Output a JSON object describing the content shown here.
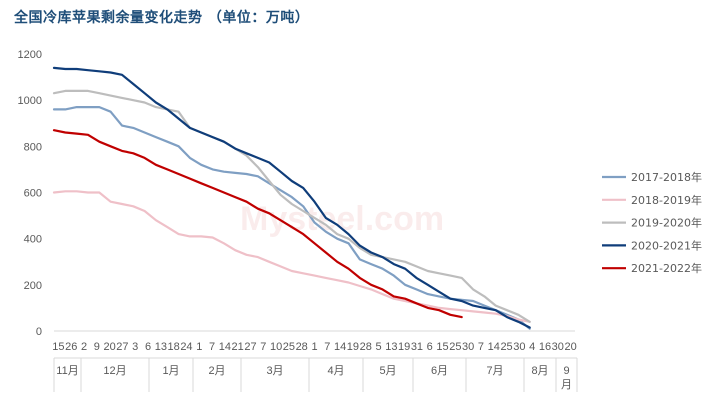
{
  "title": "全国冷库苹果剩余量变化走势  （单位：万吨）",
  "chart_data": {
    "type": "line",
    "title": "全国冷库苹果剩余量变化走势  （单位：万吨）",
    "ylim": [
      0,
      1200
    ],
    "yticks": [
      0,
      200,
      400,
      600,
      800,
      1000,
      1200
    ],
    "x_count": 47,
    "day_tick_labels": [
      "15",
      "26",
      "2",
      "9",
      "20",
      "27",
      "3",
      "6",
      "13",
      "18",
      "24",
      "1",
      "7",
      "14",
      "21",
      "27",
      "7",
      "10",
      "25",
      "28",
      "1",
      "7",
      "14",
      "19",
      "28",
      "5",
      "13",
      "19",
      "31",
      "6",
      "15",
      "25",
      "30",
      "7",
      "14",
      "25",
      "30",
      "4",
      "16",
      "30",
      "20"
    ],
    "month_labels": [
      {
        "label": "11月",
        "at": 1.0
      },
      {
        "label": "12月",
        "at": 5.0
      },
      {
        "label": "1月",
        "at": 10.0
      },
      {
        "label": "2月",
        "at": 15.5
      },
      {
        "label": "3月",
        "at": 20.5
      },
      {
        "label": "4月",
        "at": 25.5
      },
      {
        "label": "5月",
        "at": 30.5
      },
      {
        "label": "6月",
        "at": 35.5
      },
      {
        "label": "7月",
        "at": 40.5
      },
      {
        "label": "8月",
        "at": 44.0
      },
      {
        "label": "9\n月",
        "at": 46.0
      }
    ],
    "series": [
      {
        "name": "2017-2018年",
        "color": "#7f9fc3",
        "values": [
          960,
          960,
          970,
          970,
          970,
          950,
          890,
          880,
          860,
          840,
          820,
          800,
          750,
          720,
          700,
          690,
          685,
          680,
          670,
          640,
          610,
          580,
          540,
          470,
          430,
          400,
          380,
          310,
          290,
          270,
          240,
          200,
          180,
          160,
          150,
          140,
          135,
          130,
          110,
          90,
          70,
          50,
          10
        ]
      },
      {
        "name": "2018-2019年",
        "color": "#efc0c8",
        "values": [
          600,
          605,
          605,
          600,
          600,
          560,
          550,
          540,
          520,
          480,
          450,
          420,
          410,
          410,
          405,
          380,
          350,
          330,
          320,
          300,
          280,
          260,
          250,
          240,
          230,
          220,
          210,
          195,
          180,
          160,
          140,
          130,
          120,
          110,
          100,
          95,
          90,
          85,
          80,
          75,
          65,
          50,
          40
        ]
      },
      {
        "name": "2019-2020年",
        "color": "#bdbdbd",
        "values": [
          1030,
          1040,
          1040,
          1040,
          1030,
          1020,
          1010,
          1000,
          990,
          970,
          960,
          950,
          880,
          860,
          840,
          820,
          790,
          760,
          710,
          650,
          590,
          550,
          520,
          490,
          460,
          420,
          400,
          360,
          330,
          320,
          310,
          300,
          280,
          260,
          250,
          240,
          230,
          180,
          150,
          110,
          90,
          70,
          40
        ]
      },
      {
        "name": "2020-2021年",
        "color": "#0f3d7a",
        "values": [
          1140,
          1135,
          1135,
          1130,
          1125,
          1120,
          1110,
          1070,
          1030,
          990,
          960,
          920,
          880,
          860,
          840,
          820,
          790,
          770,
          750,
          730,
          690,
          650,
          620,
          560,
          490,
          460,
          420,
          370,
          340,
          320,
          290,
          270,
          230,
          200,
          170,
          140,
          130,
          110,
          100,
          90,
          60,
          40,
          15
        ]
      },
      {
        "name": "2021-2022年",
        "color": "#c00000",
        "values": [
          870,
          860,
          855,
          850,
          820,
          800,
          780,
          770,
          750,
          720,
          700,
          680,
          660,
          640,
          620,
          600,
          580,
          560,
          530,
          510,
          480,
          450,
          420,
          380,
          340,
          300,
          270,
          230,
          200,
          180,
          150,
          140,
          120,
          100,
          90,
          70,
          60
        ]
      }
    ]
  }
}
